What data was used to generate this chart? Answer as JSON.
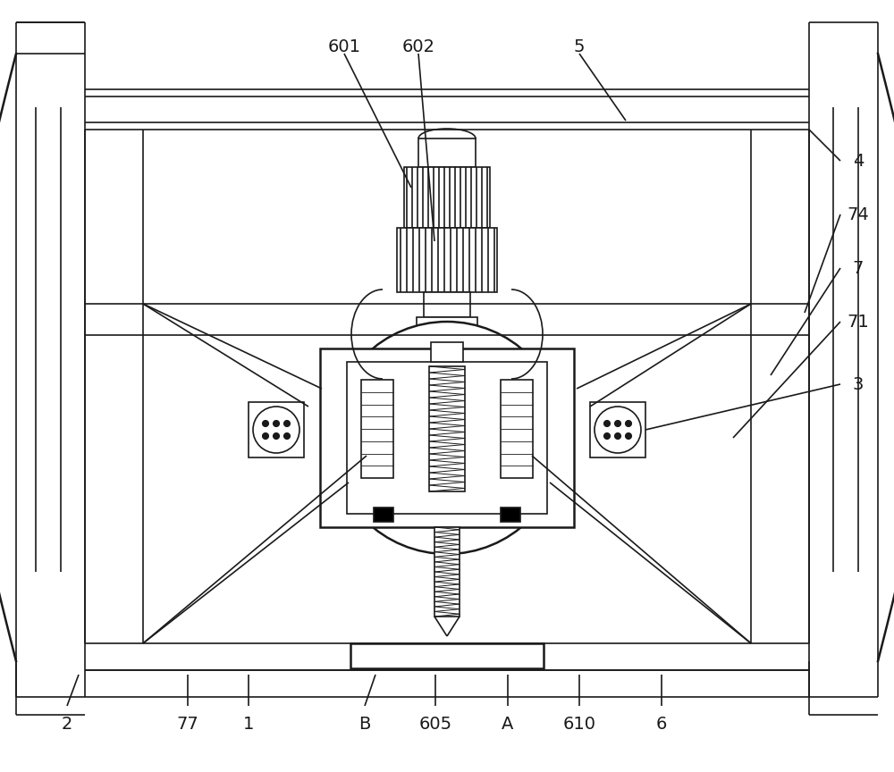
{
  "bg_color": "#ffffff",
  "line_color": "#1a1a1a",
  "lw": 1.2,
  "lw2": 1.8,
  "fig_width": 10.0,
  "fig_height": 8.64
}
